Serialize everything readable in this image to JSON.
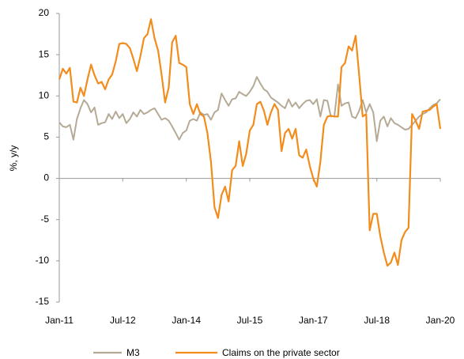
{
  "chart_data": {
    "type": "line",
    "y_label": "%, y/y",
    "categories": [
      "Jan-11",
      null,
      null,
      null,
      null,
      null,
      null,
      null,
      null,
      null,
      null,
      null,
      null,
      null,
      null,
      null,
      null,
      null,
      "Jul-12",
      null,
      null,
      null,
      null,
      null,
      null,
      null,
      null,
      null,
      null,
      null,
      null,
      null,
      null,
      null,
      null,
      null,
      "Jan-14",
      null,
      null,
      null,
      null,
      null,
      null,
      null,
      null,
      null,
      null,
      null,
      null,
      null,
      null,
      null,
      null,
      null,
      "Jul-15",
      null,
      null,
      null,
      null,
      null,
      null,
      null,
      null,
      null,
      null,
      null,
      null,
      null,
      null,
      null,
      null,
      null,
      "Jan-17",
      null,
      null,
      null,
      null,
      null,
      null,
      null,
      null,
      null,
      null,
      null,
      null,
      null,
      null,
      null,
      null,
      null,
      "Jul-18",
      null,
      null,
      null,
      null,
      null,
      null,
      null,
      null,
      null,
      null,
      null,
      null,
      null,
      null,
      null,
      null,
      null,
      "Jan-20"
    ],
    "series": [
      {
        "name": "M3",
        "color": "#b5aa96",
        "values": [
          6.8,
          6.3,
          6.2,
          6.5,
          4.7,
          7.2,
          8.5,
          9.5,
          9.0,
          8.0,
          8.6,
          6.5,
          6.7,
          6.8,
          7.8,
          7.2,
          8.1,
          7.3,
          7.8,
          6.7,
          7.2,
          8.0,
          7.5,
          8.3,
          7.8,
          8.0,
          8.3,
          8.5,
          7.8,
          7.1,
          7.3,
          7.0,
          6.3,
          5.5,
          4.7,
          5.5,
          5.8,
          7.0,
          7.2,
          7.0,
          8.0,
          7.7,
          7.8,
          7.1,
          8.0,
          8.3,
          10.3,
          9.5,
          8.8,
          9.6,
          9.7,
          10.5,
          10.2,
          10.0,
          10.5,
          11.2,
          12.3,
          11.5,
          10.8,
          10.5,
          9.8,
          9.5,
          9.2,
          8.8,
          8.5,
          9.6,
          8.7,
          9.2,
          8.5,
          9.0,
          9.4,
          9.5,
          9.0,
          9.6,
          7.5,
          9.5,
          9.4,
          7.5,
          7.6,
          11.4,
          8.8,
          9.1,
          9.2,
          7.5,
          7.3,
          8.2,
          9.5,
          8.0,
          9.0,
          8.0,
          4.5,
          7.0,
          7.5,
          6.3,
          7.3,
          6.7,
          6.5,
          6.2,
          5.9,
          6.0,
          6.5,
          7.0,
          7.5,
          7.8,
          8.0,
          8.5,
          8.9,
          9.1,
          9.6
        ]
      },
      {
        "name": "Claims on the private sector",
        "color": "#f28c1c",
        "values": [
          12,
          13.3,
          12.7,
          13.4,
          9.3,
          9.2,
          11,
          10,
          12,
          13.8,
          12.5,
          11.5,
          11.7,
          10.8,
          12,
          12.6,
          14.2,
          16.3,
          16.4,
          16.3,
          15.8,
          14.5,
          13,
          14.8,
          17,
          17.5,
          19.3,
          17,
          15.5,
          12.6,
          9.2,
          11,
          16.5,
          17.3,
          14,
          13.8,
          13.5,
          9,
          7.8,
          9,
          7.8,
          7.5,
          5.5,
          2,
          -3.5,
          -4.8,
          -2,
          -1,
          -2.8,
          1,
          1.5,
          4.5,
          1.5,
          3,
          5.8,
          6.5,
          9,
          9.3,
          8.2,
          6.5,
          8,
          9,
          8.3,
          3.3,
          5.5,
          6,
          4.8,
          6,
          2.8,
          2.5,
          3.5,
          1.5,
          0,
          -1,
          2,
          6.5,
          7.5,
          7.6,
          7.5,
          7.5,
          13.5,
          14,
          16,
          15.5,
          17.3,
          12.5,
          7.5,
          7.8,
          -6.3,
          -4.3,
          -4.3,
          -7,
          -9,
          -10.6,
          -10.2,
          -9,
          -10.5,
          -7.5,
          -6.5,
          -6,
          7.8,
          7,
          6,
          8.1,
          8.2,
          8.3,
          8.7,
          9,
          6
        ]
      }
    ],
    "ylim": [
      -15,
      20
    ],
    "yticks": [
      -15,
      -10,
      -5,
      0,
      5,
      10,
      15,
      20
    ]
  }
}
